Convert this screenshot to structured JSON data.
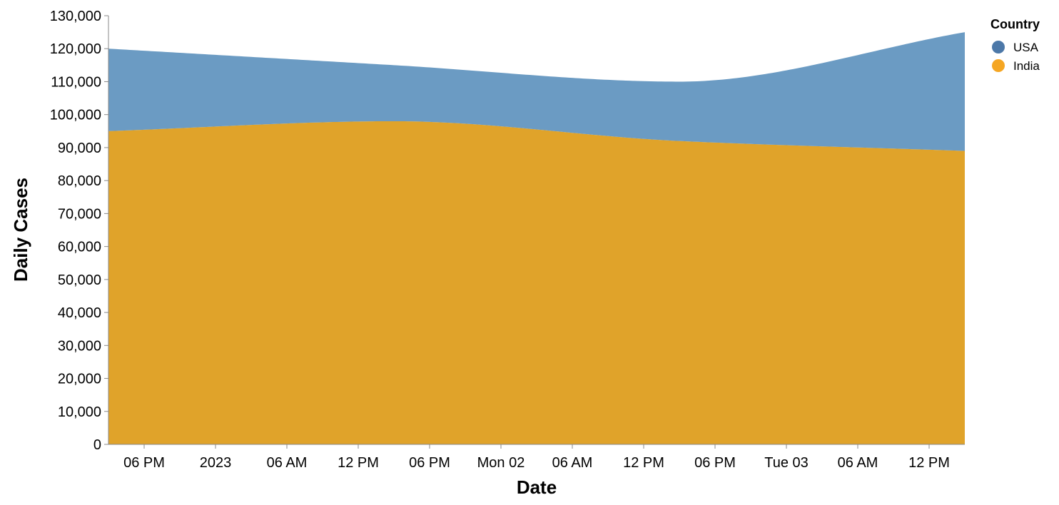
{
  "chart_data": {
    "type": "area",
    "stacked": true,
    "x_type": "time",
    "xlabel": "Date",
    "ylabel": "Daily Cases",
    "xlim": [
      "2022-12-31T15:00",
      "2023-01-03T15:00"
    ],
    "ylim": [
      0,
      130000
    ],
    "y_ticks": [
      0,
      10000,
      20000,
      30000,
      40000,
      50000,
      60000,
      70000,
      80000,
      90000,
      100000,
      110000,
      120000,
      130000
    ],
    "x_ticks": [
      {
        "t": "2022-12-31T18:00",
        "label": "06 PM"
      },
      {
        "t": "2023-01-01T00:00",
        "label": "2023"
      },
      {
        "t": "2023-01-01T06:00",
        "label": "06 AM"
      },
      {
        "t": "2023-01-01T12:00",
        "label": "12 PM"
      },
      {
        "t": "2023-01-01T18:00",
        "label": "06 PM"
      },
      {
        "t": "2023-01-02T00:00",
        "label": "Mon 02"
      },
      {
        "t": "2023-01-02T06:00",
        "label": "06 AM"
      },
      {
        "t": "2023-01-02T12:00",
        "label": "12 PM"
      },
      {
        "t": "2023-01-02T18:00",
        "label": "06 PM"
      },
      {
        "t": "2023-01-03T00:00",
        "label": "Tue 03"
      },
      {
        "t": "2023-01-03T06:00",
        "label": "06 AM"
      },
      {
        "t": "2023-01-03T12:00",
        "label": "12 PM"
      }
    ],
    "x": [
      "2022-12-31T15:00",
      "2023-01-01T15:00",
      "2023-01-02T15:00",
      "2023-01-03T15:00"
    ],
    "series": [
      {
        "name": "India",
        "color": "#e0a32a",
        "values": [
          95000,
          98000,
          92000,
          89000
        ]
      },
      {
        "name": "USA",
        "color": "#6b9bc3",
        "values": [
          25000,
          17000,
          18000,
          36000
        ]
      }
    ],
    "legend": {
      "title": "Country",
      "position": "top-right",
      "items": [
        {
          "label": "USA",
          "color": "#4c78a8"
        },
        {
          "label": "India",
          "color": "#f5a623"
        }
      ]
    },
    "grid": false
  }
}
